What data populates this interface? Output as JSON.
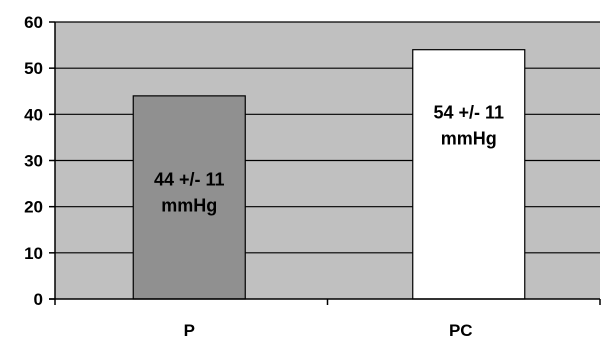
{
  "chart_data": {
    "type": "bar",
    "categories": [
      "P",
      "PC"
    ],
    "values": [
      44,
      54
    ],
    "data_labels": [
      [
        "44 +/- 11",
        "mmHg"
      ],
      [
        "54 +/- 11",
        "mmHg"
      ]
    ],
    "bar_colors": [
      "#909090",
      "#ffffff"
    ],
    "plot_background": "#c0c0c0",
    "ylim": [
      0,
      60
    ],
    "yticks": [
      0,
      10,
      20,
      30,
      40,
      50,
      60
    ],
    "grid": true,
    "legend": "none",
    "title": "",
    "xlabel": "",
    "ylabel": ""
  }
}
